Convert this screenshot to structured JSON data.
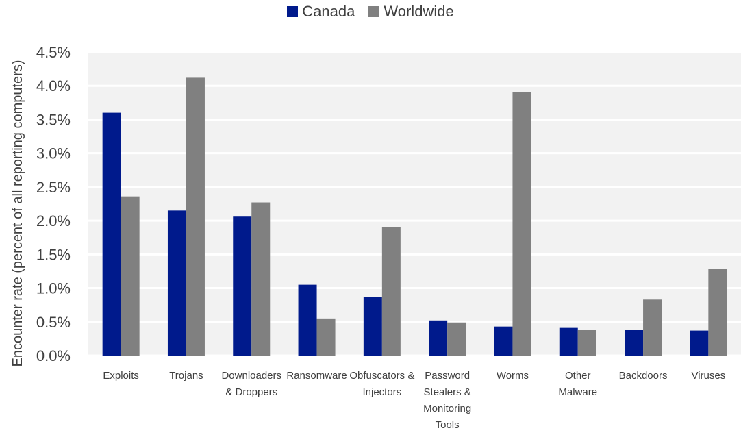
{
  "chart_data": {
    "type": "bar",
    "categories": [
      "Exploits",
      "Trojans",
      "Downloaders & Droppers",
      "Ransomware",
      "Obfuscators & Injectors",
      "Password Stealers & Monitoring Tools",
      "Worms",
      "Other Malware",
      "Backdoors",
      "Viruses"
    ],
    "category_lines": [
      [
        "Exploits"
      ],
      [
        "Trojans"
      ],
      [
        "Downloaders",
        "& Droppers"
      ],
      [
        "Ransomware"
      ],
      [
        "Obfuscators &",
        "Injectors"
      ],
      [
        "Password",
        "Stealers &",
        "Monitoring",
        "Tools"
      ],
      [
        "Worms"
      ],
      [
        "Other",
        "Malware"
      ],
      [
        "Backdoors"
      ],
      [
        "Viruses"
      ]
    ],
    "series": [
      {
        "name": "Canada",
        "color": "#001a8c",
        "values": [
          0.036,
          0.0215,
          0.0206,
          0.0105,
          0.0087,
          0.0052,
          0.0043,
          0.0041,
          0.0038,
          0.0037
        ]
      },
      {
        "name": "Worldwide",
        "color": "#808080",
        "values": [
          0.0236,
          0.0412,
          0.0227,
          0.0055,
          0.019,
          0.0049,
          0.0391,
          0.0038,
          0.0083,
          0.0129
        ]
      }
    ],
    "title": "",
    "xlabel": "",
    "ylabel": "Encounter rate (percent of all reporting computers)",
    "ylim": [
      0,
      0.045
    ],
    "yticks": [
      0,
      0.005,
      0.01,
      0.015,
      0.02,
      0.025,
      0.03,
      0.035,
      0.04,
      0.045
    ],
    "ytick_labels": [
      "0.0%",
      "0.5%",
      "1.0%",
      "1.5%",
      "2.0%",
      "2.5%",
      "3.0%",
      "3.5%",
      "4.0%",
      "4.5%"
    ],
    "grid": true,
    "legend_position": "top-center",
    "plot_background": "#f2f2f2",
    "gridline_color": "#ffffff"
  }
}
